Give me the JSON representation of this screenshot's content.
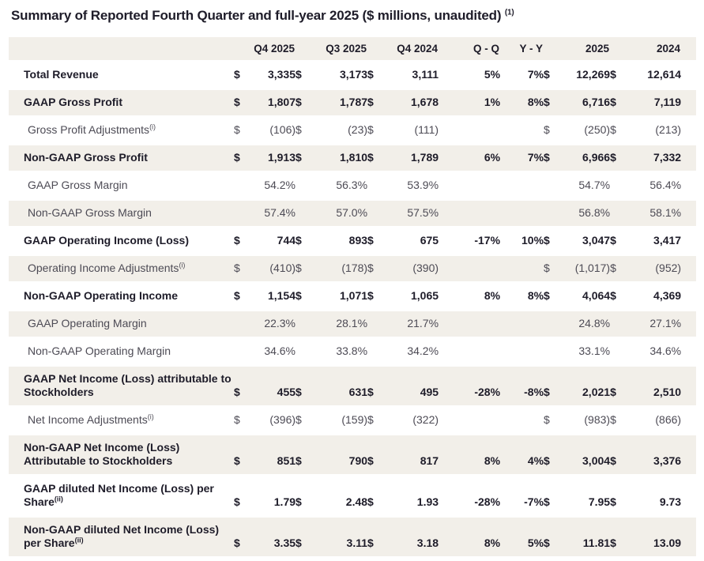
{
  "meta": {
    "currency_symbol": "$",
    "colors": {
      "row-stripe": "#f2efe9",
      "text-bold": "#1e1c29",
      "text-regular": "#4d4b55",
      "background": "#ffffff"
    }
  },
  "title": {
    "text": "Summary of Reported Fourth Quarter and full-year 2025 ($ millions, unaudited)",
    "superscript": "(1)"
  },
  "table": {
    "columns": [
      "Q4 2025",
      "Q3 2025",
      "Q4 2024",
      "Q - Q",
      "Y - Y",
      "2025",
      "2024"
    ],
    "rows": [
      {
        "label": "Total Revenue",
        "bold": true,
        "dollar": true,
        "indent": false,
        "q4_2025": "3,335",
        "q3_2025": "3,173",
        "q4_2024": "3,111",
        "q_q": "5%",
        "y_y": "7%",
        "fy_2025": "12,269",
        "fy_2024": "12,614"
      },
      {
        "label": "GAAP Gross Profit",
        "bold": true,
        "dollar": true,
        "indent": false,
        "q4_2025": "1,807",
        "q3_2025": "1,787",
        "q4_2024": "1,678",
        "q_q": "1%",
        "y_y": "8%",
        "fy_2025": "6,716",
        "fy_2024": "7,119"
      },
      {
        "label": "Gross Profit Adjustments",
        "sup": "(i)",
        "bold": false,
        "dollar": true,
        "indent": true,
        "q4_2025": "(106)",
        "q3_2025": "(23)",
        "q4_2024": "(111)",
        "q_q": "",
        "y_y": "",
        "fy_2025": "(250)",
        "fy_2024": "(213)"
      },
      {
        "label": "Non-GAAP Gross Profit",
        "bold": true,
        "dollar": true,
        "indent": false,
        "q4_2025": "1,913",
        "q3_2025": "1,810",
        "q4_2024": "1,789",
        "q_q": "6%",
        "y_y": "7%",
        "fy_2025": "6,966",
        "fy_2024": "7,332"
      },
      {
        "label": "GAAP Gross Margin",
        "bold": false,
        "dollar": false,
        "indent": true,
        "q4_2025": "54.2%",
        "q3_2025": "56.3%",
        "q4_2024": "53.9%",
        "q_q": "",
        "y_y": "",
        "fy_2025": "54.7%",
        "fy_2024": "56.4%"
      },
      {
        "label": "Non-GAAP Gross Margin",
        "bold": false,
        "dollar": false,
        "indent": true,
        "q4_2025": "57.4%",
        "q3_2025": "57.0%",
        "q4_2024": "57.5%",
        "q_q": "",
        "y_y": "",
        "fy_2025": "56.8%",
        "fy_2024": "58.1%"
      },
      {
        "label": "GAAP Operating Income (Loss)",
        "bold": true,
        "dollar": true,
        "indent": false,
        "q4_2025": "744",
        "q3_2025": "893",
        "q4_2024": "675",
        "q_q": "-17%",
        "y_y": "10%",
        "fy_2025": "3,047",
        "fy_2024": "3,417"
      },
      {
        "label": "Operating Income Adjustments",
        "sup": "(i)",
        "bold": false,
        "dollar": true,
        "indent": true,
        "q4_2025": "(410)",
        "q3_2025": "(178)",
        "q4_2024": "(390)",
        "q_q": "",
        "y_y": "",
        "fy_2025": "(1,017)",
        "fy_2024": "(952)"
      },
      {
        "label": "Non-GAAP Operating Income",
        "bold": true,
        "dollar": true,
        "indent": false,
        "q4_2025": "1,154",
        "q3_2025": "1,071",
        "q4_2024": "1,065",
        "q_q": "8%",
        "y_y": "8%",
        "fy_2025": "4,064",
        "fy_2024": "4,369"
      },
      {
        "label": "GAAP Operating Margin",
        "bold": false,
        "dollar": false,
        "indent": true,
        "q4_2025": "22.3%",
        "q3_2025": "28.1%",
        "q4_2024": "21.7%",
        "q_q": "",
        "y_y": "",
        "fy_2025": "24.8%",
        "fy_2024": "27.1%"
      },
      {
        "label": "Non-GAAP Operating Margin",
        "bold": false,
        "dollar": false,
        "indent": true,
        "q4_2025": "34.6%",
        "q3_2025": "33.8%",
        "q4_2024": "34.2%",
        "q_q": "",
        "y_y": "",
        "fy_2025": "33.1%",
        "fy_2024": "34.6%"
      },
      {
        "label": "GAAP Net Income (Loss) attributable to Stockholders",
        "bold": true,
        "dollar": true,
        "indent": false,
        "q4_2025": "455",
        "q3_2025": "631",
        "q4_2024": "495",
        "q_q": "-28%",
        "y_y": "-8%",
        "fy_2025": "2,021",
        "fy_2024": "2,510"
      },
      {
        "label": "Net Income Adjustments",
        "sup": "(i)",
        "bold": false,
        "dollar": true,
        "indent": true,
        "q4_2025": "(396)",
        "q3_2025": "(159)",
        "q4_2024": "(322)",
        "q_q": "",
        "y_y": "",
        "fy_2025": "(983)",
        "fy_2024": "(866)"
      },
      {
        "label": "Non-GAAP Net Income (Loss) Attributable to Stockholders",
        "bold": true,
        "dollar": true,
        "indent": false,
        "q4_2025": "851",
        "q3_2025": "790",
        "q4_2024": "817",
        "q_q": "8%",
        "y_y": "4%",
        "fy_2025": "3,004",
        "fy_2024": "3,376"
      },
      {
        "label": "GAAP diluted Net Income (Loss) per Share",
        "sup": "(ii)",
        "bold": true,
        "dollar": true,
        "indent": false,
        "q4_2025": "1.79",
        "q3_2025": "2.48",
        "q4_2024": "1.93",
        "q_q": "-28%",
        "y_y": "-7%",
        "fy_2025": "7.95",
        "fy_2024": "9.73"
      },
      {
        "label": "Non-GAAP diluted Net Income (Loss) per Share",
        "sup": "(ii)",
        "bold": true,
        "dollar": true,
        "indent": false,
        "q4_2025": "3.35",
        "q3_2025": "3.11",
        "q4_2024": "3.18",
        "q_q": "8%",
        "y_y": "5%",
        "fy_2025": "11.81",
        "fy_2024": "13.09"
      }
    ]
  }
}
